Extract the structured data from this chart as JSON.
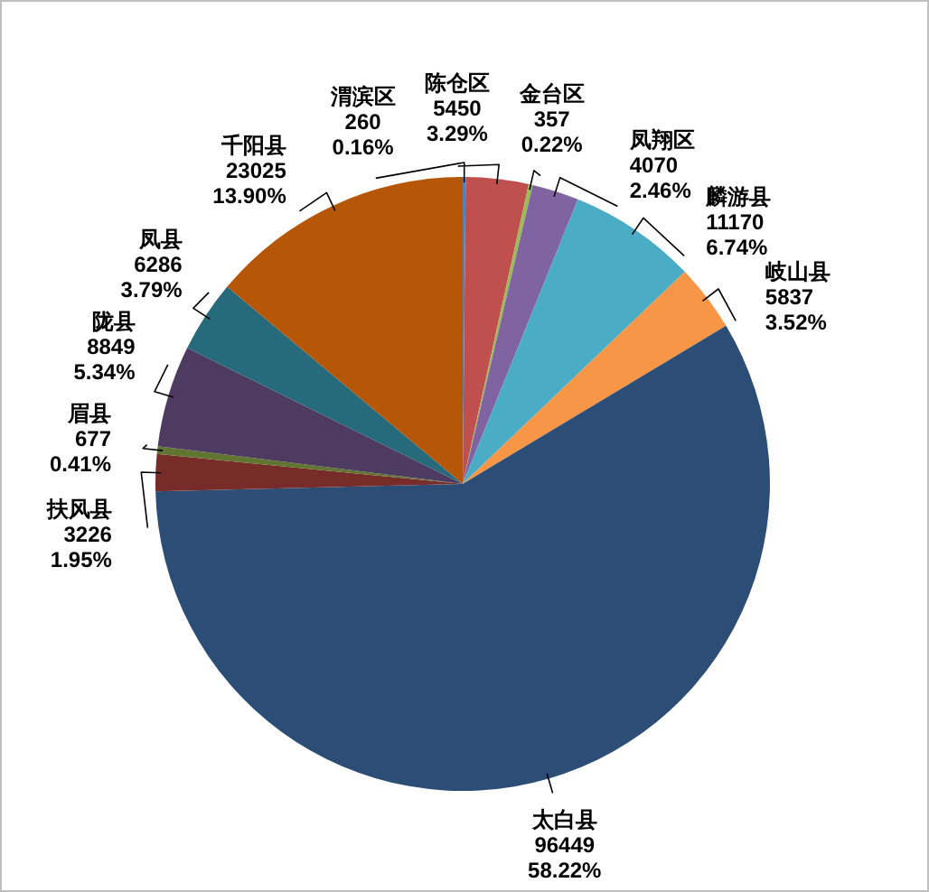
{
  "chart_data": {
    "type": "pie",
    "categories": [
      "渭滨区",
      "陈仓区",
      "金台区",
      "凤翔区",
      "麟游县",
      "岐山县",
      "太白县",
      "扶风县",
      "眉县",
      "陇县",
      "凤县",
      "千阳县"
    ],
    "values": [
      260,
      5450,
      357,
      4070,
      11170,
      5837,
      96449,
      3226,
      677,
      8849,
      6286,
      23025
    ],
    "colors": [
      "#4f81bd",
      "#c0504d",
      "#9bbb59",
      "#8064a2",
      "#4bacc6",
      "#f79646",
      "#2c4d75",
      "#772c2a",
      "#5f7530",
      "#4d3b62",
      "#276a7c",
      "#b65708"
    ],
    "value_labels": [
      "260\n0.16%",
      "5450\n3.29%",
      "357\n0.22%",
      "4070\n2.46%",
      "11170\n6.74%",
      "5837\n3.52%",
      "96449\n58.22%",
      "3226\n1.95%",
      "677\n0.41%",
      "8849\n5.34%",
      "6286\n3.79%",
      "23025\n13.90%"
    ]
  }
}
